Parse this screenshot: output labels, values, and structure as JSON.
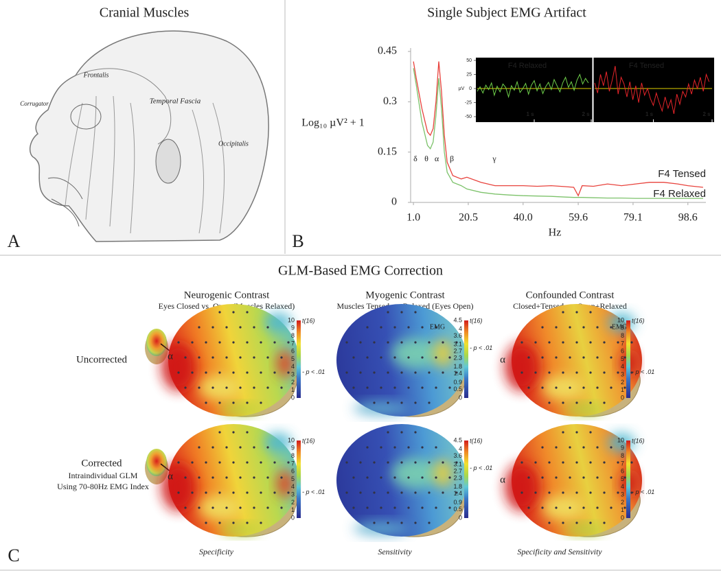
{
  "panel_a": {
    "letter": "A",
    "title": "Cranial Muscles",
    "labels": [
      "Corrugator",
      "Frontalis",
      "Temporal Fascia",
      "Occipitalis"
    ]
  },
  "panel_b": {
    "letter": "B",
    "title": "Single Subject EMG Artifact"
  },
  "chart_data": [
    {
      "type": "line",
      "y_label": "Log₁₀  µV² + 1",
      "x_label": "Hz",
      "x": [
        1,
        2,
        4,
        6,
        7,
        8,
        9,
        10,
        11,
        12,
        13,
        15,
        18,
        20,
        25,
        30,
        35,
        40,
        45,
        50,
        55,
        58,
        59.6,
        61,
        65,
        70,
        75,
        80,
        85,
        90,
        95,
        98.6,
        104
      ],
      "series": [
        {
          "name": "F4 Tensed",
          "color": "#e8423c",
          "values": [
            0.42,
            0.37,
            0.28,
            0.21,
            0.2,
            0.22,
            0.3,
            0.42,
            0.33,
            0.2,
            0.12,
            0.08,
            0.07,
            0.075,
            0.06,
            0.05,
            0.05,
            0.05,
            0.048,
            0.05,
            0.047,
            0.045,
            0.02,
            0.05,
            0.048,
            0.055,
            0.05,
            0.055,
            0.06,
            0.06,
            0.055,
            0.05,
            0.045
          ]
        },
        {
          "name": "F4 Relaxed",
          "color": "#7cc26a",
          "values": [
            0.4,
            0.35,
            0.24,
            0.17,
            0.16,
            0.18,
            0.26,
            0.37,
            0.28,
            0.15,
            0.09,
            0.06,
            0.05,
            0.04,
            0.03,
            0.025,
            0.022,
            0.02,
            0.019,
            0.018,
            0.016,
            0.015,
            0.015,
            0.015,
            0.014,
            0.013,
            0.013,
            0.012,
            0.012,
            0.012,
            0.012,
            0.012,
            0.012
          ]
        }
      ],
      "xlim": [
        0,
        105
      ],
      "ylim": [
        0,
        0.47
      ],
      "xticks": [
        {
          "value": 1,
          "label": "1.0"
        },
        20.5,
        {
          "value": 40,
          "label": "40.0"
        },
        59.6,
        79.1,
        98.6
      ],
      "yticks": [
        0,
        0.15,
        0.3,
        0.45
      ],
      "annotations": [
        "δ",
        "θ",
        "α",
        "β",
        "γ"
      ]
    },
    {
      "type": "line",
      "y_label": "µV",
      "background": "#000000",
      "zero_line_color": "#e0d000",
      "x": [
        0,
        0.05,
        0.1,
        0.15,
        0.2,
        0.25,
        0.3,
        0.35,
        0.4,
        0.45,
        0.5,
        0.55,
        0.6,
        0.65,
        0.7,
        0.75,
        0.8,
        0.85,
        0.9,
        0.95,
        1,
        1.05,
        1.1,
        1.15,
        1.2,
        1.25,
        1.3,
        1.35,
        1.4,
        1.45,
        1.5,
        1.55,
        1.6,
        1.65,
        1.7,
        1.75,
        1.8,
        1.85,
        1.9,
        1.95
      ],
      "series": [
        {
          "name": "F4 Relaxed",
          "color": "#6fd14a",
          "values": [
            -5,
            3,
            -8,
            6,
            -2,
            10,
            -12,
            4,
            -6,
            8,
            2,
            -15,
            5,
            -3,
            12,
            -7,
            0,
            9,
            -10,
            6,
            14,
            -4,
            8,
            -9,
            3,
            11,
            -2,
            16,
            5,
            -6,
            10,
            20,
            2,
            12,
            -3,
            15,
            25,
            8,
            18,
            10
          ]
        },
        {
          "name": "F4 Tensed",
          "color": "#e8252a",
          "values": [
            10,
            -8,
            25,
            5,
            30,
            -5,
            15,
            40,
            -10,
            20,
            8,
            -15,
            12,
            -20,
            5,
            -25,
            10,
            -12,
            0,
            -18,
            -30,
            -8,
            -25,
            -40,
            -15,
            -35,
            -20,
            -45,
            -10,
            -28,
            -5,
            -15,
            8,
            -10,
            15,
            0,
            20,
            -5,
            25,
            12
          ]
        }
      ],
      "xlim": [
        0,
        2
      ],
      "ylim": [
        -50,
        50
      ],
      "xticks": [
        {
          "value": 1,
          "label": "1 s"
        },
        {
          "value": 2,
          "label": "2 s"
        }
      ],
      "yticks": [
        50,
        25,
        0,
        -25,
        -50
      ]
    }
  ],
  "panel_c": {
    "letter": "C",
    "title": "GLM-Based EMG Correction",
    "columns": [
      {
        "title": "Neurogenic Contrast",
        "subtitle": "Eyes Closed vs. Open (Muscles Relaxed)",
        "footer": "Specificity",
        "scale_label": "t(16)",
        "threshold_label": "- p < .01",
        "scale_ticks": [
          10,
          9,
          8,
          7,
          6,
          5,
          4,
          3,
          2,
          1,
          0
        ]
      },
      {
        "title": "Myogenic Contrast",
        "subtitle": "Muscles Tensed vs. Relaxed (Eyes Open)",
        "footer": "Sensitivity",
        "scale_label": "t(16)",
        "threshold_label": "- p < .01",
        "scale_ticks": [
          4.5,
          4,
          3.6,
          3.1,
          2.7,
          2.3,
          1.8,
          1.4,
          0.9,
          0.5,
          0
        ]
      },
      {
        "title": "Confounded Contrast",
        "subtitle": "Closed+Tensed vs. Open+Relaxed",
        "footer": "Specificity and Sensitivity",
        "scale_label": "t(16)",
        "threshold_label": "- p < .01",
        "scale_ticks": [
          10,
          9,
          8,
          7,
          6,
          5,
          4,
          3,
          2,
          1,
          0
        ]
      }
    ],
    "rows": [
      {
        "label": "Uncorrected",
        "marks": [
          [
            "α"
          ],
          [
            "EMG"
          ],
          [
            "α",
            "EMG"
          ]
        ]
      },
      {
        "label": "Corrected",
        "sublabels": [
          "Intraindividual GLM",
          "Using 70-80Hz EMG Index"
        ],
        "marks": [
          [
            "α"
          ],
          [],
          [
            "α"
          ]
        ]
      }
    ]
  }
}
